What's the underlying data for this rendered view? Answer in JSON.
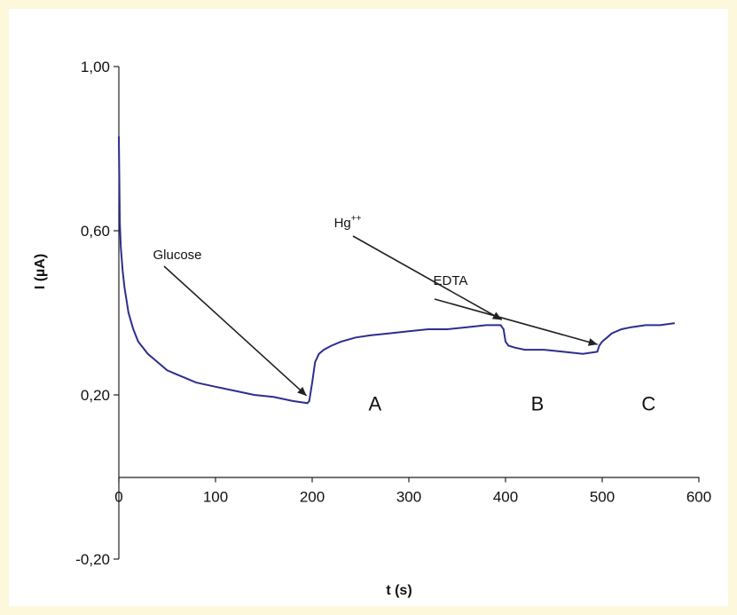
{
  "chart_data": {
    "type": "line",
    "title": "",
    "xlabel": "t (s)",
    "ylabel": "I (µA)",
    "xlim": [
      0,
      600
    ],
    "ylim": [
      -0.2,
      1.0
    ],
    "x_ticks": [
      0,
      100,
      200,
      300,
      400,
      500,
      600
    ],
    "x_tick_labels": [
      "0",
      "100",
      "200",
      "300",
      "400",
      "500",
      "600"
    ],
    "y_ticks": [
      -0.2,
      0.2,
      0.6,
      1.0
    ],
    "y_tick_labels": [
      "-0,20",
      "0,20",
      "0,60",
      "1,00"
    ],
    "grid": false,
    "legend": "none",
    "line_color": "#2b2f8f",
    "series": [
      {
        "x": [
          0,
          1,
          2,
          4,
          6,
          8,
          10,
          15,
          20,
          30,
          40,
          50,
          60,
          80,
          100,
          120,
          140,
          160,
          180,
          195,
          197,
          200,
          203,
          207,
          212,
          220,
          230,
          245,
          260,
          280,
          300,
          320,
          340,
          360,
          380,
          395,
          398,
          400,
          403,
          410,
          420,
          440,
          460,
          480,
          495,
          497,
          500,
          505,
          510,
          520,
          530,
          545,
          560,
          575
        ],
        "y": [
          0.83,
          0.62,
          0.56,
          0.5,
          0.46,
          0.43,
          0.4,
          0.36,
          0.33,
          0.3,
          0.28,
          0.26,
          0.25,
          0.23,
          0.22,
          0.21,
          0.2,
          0.195,
          0.185,
          0.18,
          0.185,
          0.23,
          0.28,
          0.3,
          0.31,
          0.32,
          0.33,
          0.34,
          0.345,
          0.35,
          0.355,
          0.36,
          0.36,
          0.365,
          0.37,
          0.37,
          0.36,
          0.33,
          0.32,
          0.315,
          0.31,
          0.31,
          0.305,
          0.3,
          0.305,
          0.32,
          0.33,
          0.34,
          0.35,
          0.36,
          0.365,
          0.37,
          0.37,
          0.375
        ]
      }
    ],
    "annotations": [
      {
        "text": "Glucose",
        "x": 196,
        "y": 0.185
      },
      {
        "text": "Hg",
        "superscript": "++",
        "x": 398,
        "y": 0.37
      },
      {
        "text": "EDTA",
        "x": 497,
        "y": 0.31
      }
    ],
    "region_labels": [
      {
        "text": "A",
        "x": 265,
        "y": 0.18
      },
      {
        "text": "B",
        "x": 433,
        "y": 0.18
      },
      {
        "text": "C",
        "x": 548,
        "y": 0.18
      }
    ]
  }
}
